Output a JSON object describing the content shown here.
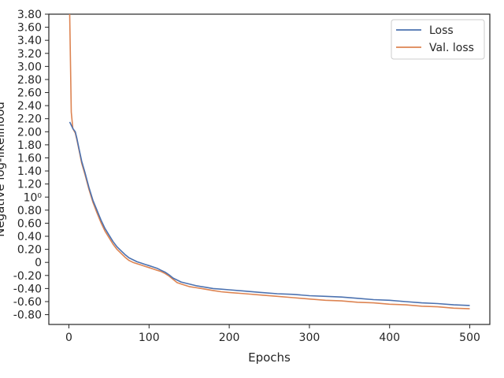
{
  "chart_data": {
    "type": "line",
    "title": "",
    "xlabel": "Epochs",
    "ylabel": "Negative log-likelihood",
    "xlim": [
      -25,
      525
    ],
    "ylim": [
      -0.95,
      3.8
    ],
    "grid": false,
    "legend_position": "top-right",
    "x_ticks": [
      0,
      100,
      200,
      300,
      400,
      500
    ],
    "x_tick_labels": [
      "0",
      "100",
      "200",
      "300",
      "400",
      "500"
    ],
    "y_ticks": [
      -0.8,
      -0.6,
      -0.4,
      -0.2,
      0,
      0.2,
      0.4,
      0.6,
      0.8,
      1.0,
      1.2,
      1.4,
      1.6,
      1.8,
      2.0,
      2.2,
      2.4,
      2.6,
      2.8,
      3.0,
      3.2,
      3.4,
      3.6,
      3.8
    ],
    "y_tick_labels": [
      "-0.80",
      "-0.60",
      "-0.40",
      "-0.20",
      "0",
      "0.20",
      "0.40",
      "0.60",
      "0.80",
      "10⁰",
      "1.20",
      "1.40",
      "1.60",
      "1.80",
      "2.00",
      "2.20",
      "2.40",
      "2.60",
      "2.80",
      "3.00",
      "3.20",
      "3.40",
      "3.60",
      "3.80"
    ],
    "series": [
      {
        "name": "Loss",
        "color": "#4c72b0",
        "x": [
          1,
          3,
          5,
          8,
          10,
          13,
          16,
          20,
          25,
          30,
          35,
          40,
          45,
          50,
          55,
          60,
          65,
          70,
          75,
          80,
          85,
          90,
          95,
          100,
          105,
          110,
          115,
          120,
          125,
          130,
          135,
          140,
          150,
          160,
          170,
          180,
          190,
          200,
          220,
          240,
          260,
          280,
          300,
          320,
          340,
          360,
          380,
          400,
          420,
          440,
          460,
          480,
          500
        ],
        "y": [
          2.15,
          2.1,
          2.05,
          2.0,
          1.9,
          1.72,
          1.55,
          1.38,
          1.15,
          0.95,
          0.8,
          0.65,
          0.52,
          0.42,
          0.32,
          0.24,
          0.18,
          0.12,
          0.07,
          0.04,
          0.01,
          -0.01,
          -0.03,
          -0.05,
          -0.07,
          -0.09,
          -0.12,
          -0.15,
          -0.19,
          -0.24,
          -0.27,
          -0.3,
          -0.33,
          -0.36,
          -0.38,
          -0.4,
          -0.41,
          -0.42,
          -0.44,
          -0.46,
          -0.48,
          -0.49,
          -0.51,
          -0.52,
          -0.53,
          -0.55,
          -0.57,
          -0.58,
          -0.6,
          -0.62,
          -0.63,
          -0.65,
          -0.66
        ]
      },
      {
        "name": "Val. loss",
        "color": "#dd8452",
        "x": [
          1,
          3,
          5,
          8,
          10,
          13,
          16,
          20,
          25,
          30,
          35,
          40,
          45,
          50,
          55,
          60,
          65,
          70,
          75,
          80,
          85,
          90,
          95,
          100,
          105,
          110,
          115,
          120,
          125,
          130,
          135,
          140,
          150,
          160,
          170,
          180,
          190,
          200,
          220,
          240,
          260,
          280,
          300,
          320,
          340,
          360,
          380,
          400,
          420,
          440,
          460,
          480,
          500
        ],
        "y": [
          3.8,
          2.3,
          2.05,
          1.98,
          1.88,
          1.7,
          1.52,
          1.35,
          1.12,
          0.92,
          0.76,
          0.61,
          0.48,
          0.38,
          0.28,
          0.2,
          0.14,
          0.08,
          0.03,
          0.0,
          -0.02,
          -0.04,
          -0.06,
          -0.08,
          -0.1,
          -0.12,
          -0.14,
          -0.17,
          -0.21,
          -0.26,
          -0.31,
          -0.33,
          -0.37,
          -0.39,
          -0.41,
          -0.43,
          -0.45,
          -0.46,
          -0.48,
          -0.5,
          -0.52,
          -0.54,
          -0.56,
          -0.58,
          -0.59,
          -0.61,
          -0.62,
          -0.64,
          -0.65,
          -0.67,
          -0.68,
          -0.7,
          -0.71
        ]
      }
    ]
  }
}
